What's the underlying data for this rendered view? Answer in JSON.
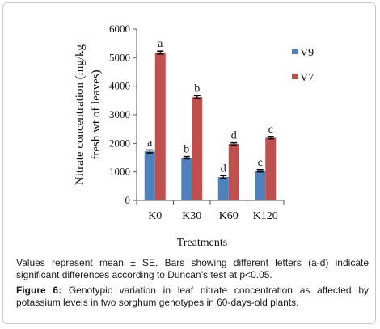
{
  "chart_data": {
    "type": "bar",
    "ylabel_lines": [
      "Nitrate concentration (mg/kg",
      "fresh wt of leaves)"
    ],
    "xlabel": "Treatments",
    "categories": [
      "K0",
      "K30",
      "K60",
      "K120"
    ],
    "ylim": [
      0,
      6000
    ],
    "yticks": [
      0,
      1000,
      2000,
      3000,
      4000,
      5000,
      6000
    ],
    "grid": false,
    "legend_position": "right",
    "series": [
      {
        "name": "V9",
        "color": "#4f81bd",
        "values": [
          1720,
          1500,
          820,
          1040
        ],
        "errors": [
          50,
          40,
          50,
          40
        ],
        "letters": [
          "a",
          "b",
          "d",
          "c"
        ]
      },
      {
        "name": "V7",
        "color": "#c0504d",
        "values": [
          5180,
          3620,
          1980,
          2200
        ],
        "errors": [
          50,
          50,
          40,
          40
        ],
        "letters": [
          "a",
          "b",
          "d",
          "c"
        ]
      }
    ]
  },
  "caption": {
    "note": "Values represent mean ± SE. Bars showing different  letters (a-d) indicate significant differences according to Duncan’s test at p<0.05.",
    "figure_label": "Figure 6:",
    "figure_text": " Genotypic variation in leaf nitrate concentration as affected by potassium levels in two sorghum genotypes in 60-days-old plants."
  }
}
